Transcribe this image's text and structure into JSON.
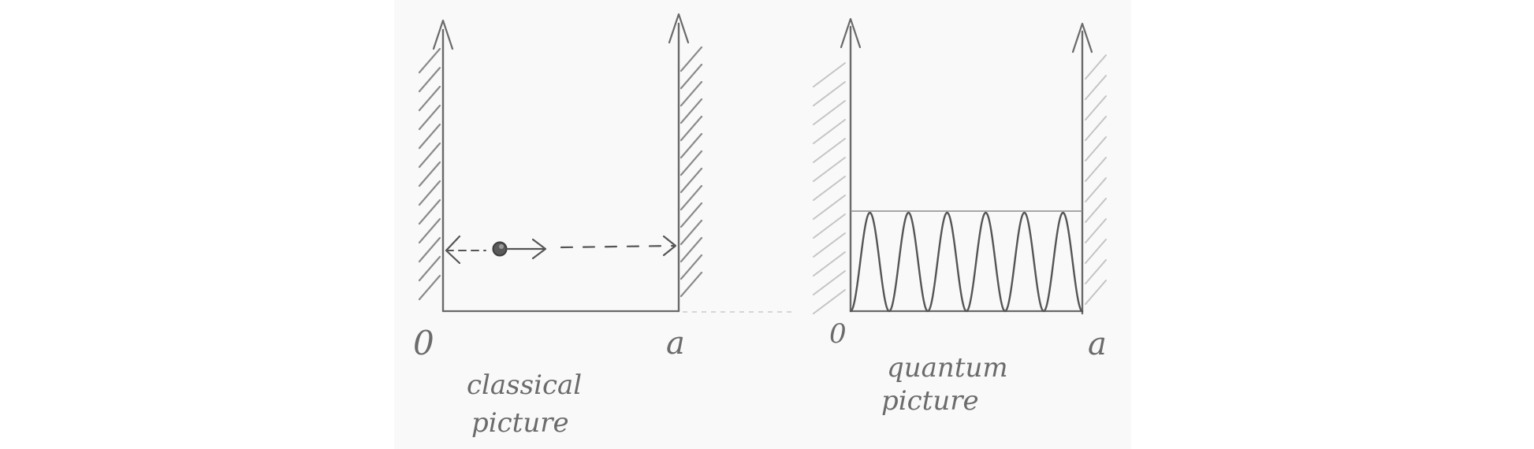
{
  "left_panel": {
    "origin_label": "0",
    "end_label": "a",
    "caption_line1": "classical",
    "caption_line2": "picture"
  },
  "right_panel": {
    "origin_label": "0",
    "end_label": "a",
    "caption_line1": "quantum",
    "caption_line2": "picture"
  },
  "colors": {
    "ink": "#6a6a6a",
    "hatch": "#8a8a8a",
    "particle": "#5a5a5a"
  },
  "icons": {
    "particle": "particle-dot-icon",
    "arrow": "arrowhead-icon"
  }
}
